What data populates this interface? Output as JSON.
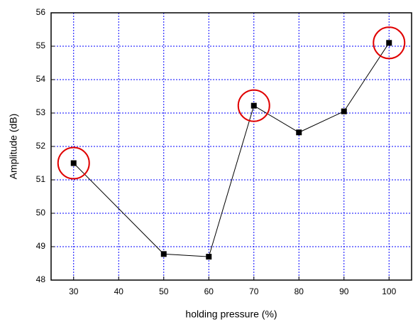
{
  "chart_data": {
    "type": "line",
    "x_label": "holding pressure (%)",
    "y_label": "Amplitude (dB)",
    "x": [
      30,
      50,
      60,
      70,
      80,
      90,
      100
    ],
    "series": [
      {
        "color": "#000000",
        "values": [
          51.5,
          48.78,
          48.7,
          53.22,
          52.42,
          53.05,
          55.1
        ]
      }
    ],
    "xlim": [
      25,
      105
    ],
    "xticks": [
      30,
      40,
      50,
      60,
      70,
      80,
      90,
      100
    ],
    "ylim": [
      48,
      56
    ],
    "yticks": [
      48,
      49,
      50,
      51,
      52,
      53,
      54,
      55,
      56
    ],
    "grid": true,
    "grid_color": "#0000ff",
    "highlight_x": [
      30,
      70,
      100
    ],
    "highlight_color": "#e00000"
  }
}
